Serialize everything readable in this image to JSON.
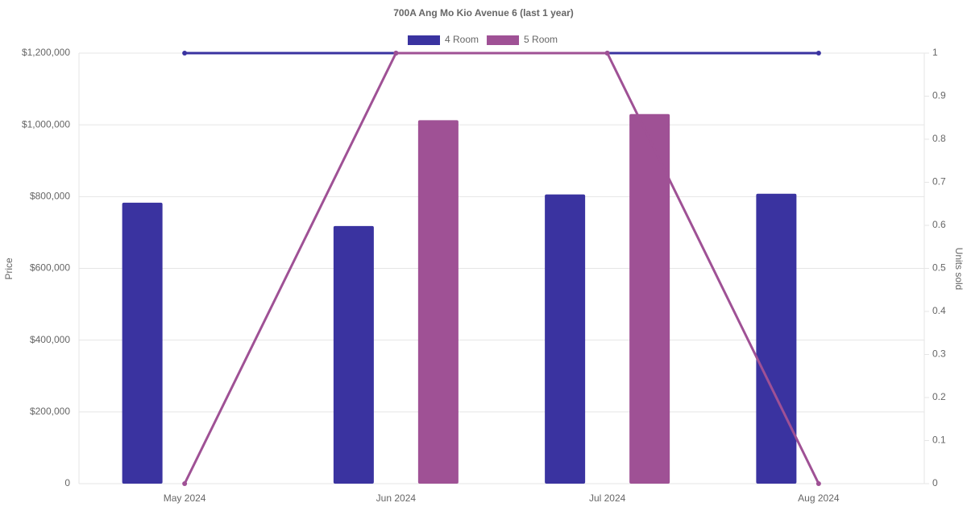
{
  "chart_data": {
    "type": "bar-line",
    "title": "700A Ang Mo Kio Avenue 6 (last 1 year)",
    "y_label": "Price",
    "y2_label": "Units sold",
    "categories": [
      "May 2024",
      "Jun 2024",
      "Jul 2024",
      "Aug 2024"
    ],
    "series": [
      {
        "name": "4 Room",
        "color": "#3a33a0",
        "values": [
          783000,
          718000,
          806000,
          808000
        ],
        "units": [
          1,
          1,
          1,
          1
        ]
      },
      {
        "name": "5 Room",
        "color": "#9f5195",
        "values": [
          null,
          1013000,
          1030000,
          null
        ],
        "units": [
          0,
          1,
          1,
          0
        ]
      }
    ],
    "ylim": [
      0,
      1200000
    ],
    "yticks": [
      0,
      {
        "value": 200000,
        "label": "$200,000"
      },
      {
        "value": 400000,
        "label": "$400,000"
      },
      {
        "value": 600000,
        "label": "$600,000"
      },
      {
        "value": 800000,
        "label": "$800,000"
      },
      {
        "value": 1000000,
        "label": "$1,000,000"
      },
      {
        "value": 1200000,
        "label": "$1,200,000"
      }
    ],
    "y2lim": [
      0,
      1
    ],
    "y2ticks": [
      0,
      0.1,
      0.2,
      0.3,
      0.4,
      0.5,
      0.6,
      0.7,
      0.8,
      0.9,
      1
    ],
    "grid": true,
    "legend": "top"
  }
}
